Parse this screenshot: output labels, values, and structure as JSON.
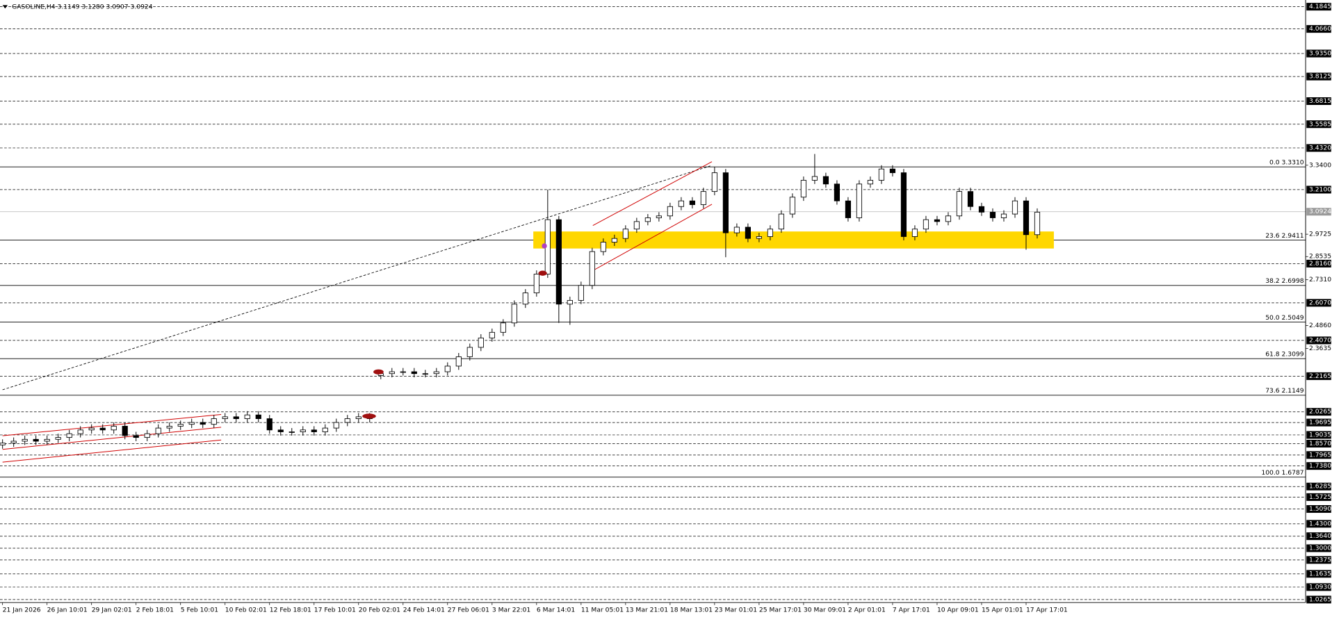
{
  "chart_data": {
    "type": "candlestick",
    "title": "GASOLINE,H4  3.1149 3.1280 3.0907 3.0924",
    "categories": [
      "21 Jan 2026",
      null,
      null,
      null,
      "26 Jan 10:01",
      null,
      null,
      null,
      "29 Jan 02:01",
      null,
      null,
      null,
      "2 Feb 18:01",
      null,
      null,
      null,
      "5 Feb 10:01",
      null,
      null,
      null,
      "10 Feb 02:01",
      null,
      null,
      null,
      "12 Feb 18:01",
      null,
      null,
      null,
      "17 Feb 10:01",
      null,
      null,
      null,
      "20 Feb 02:01",
      null,
      null,
      null,
      "24 Feb 14:01",
      null,
      null,
      null,
      "27 Feb 06:01",
      null,
      null,
      null,
      "3 Mar 22:01",
      null,
      null,
      null,
      "6 Mar 14:01",
      null,
      null,
      null,
      "11 Mar 05:01",
      null,
      null,
      null,
      "13 Mar 21:01",
      null,
      null,
      null,
      "18 Mar 13:01",
      null,
      null,
      null,
      "23 Mar 01:01",
      null,
      null,
      null,
      "25 Mar 17:01",
      null,
      null,
      null,
      "30 Mar 09:01",
      null,
      null,
      null,
      "2 Apr 01:01",
      null,
      null,
      null,
      "7 Apr 17:01",
      null,
      null,
      null,
      "10 Apr 09:01",
      null,
      null,
      null,
      "15 Apr 01:01",
      null,
      null,
      null,
      "17 Apr 17:01",
      null
    ],
    "open": [
      1.85,
      1.86,
      1.87,
      1.88,
      1.87,
      1.88,
      1.89,
      1.91,
      1.93,
      1.94,
      1.93,
      1.95,
      1.9,
      1.89,
      1.91,
      1.94,
      1.95,
      1.96,
      1.97,
      1.96,
      1.99,
      2.0,
      1.99,
      2.01,
      1.99,
      1.93,
      1.92,
      1.92,
      1.93,
      1.92,
      1.94,
      1.97,
      1.99,
      2.0,
      2.22,
      2.23,
      2.24,
      2.24,
      2.23,
      2.23,
      2.24,
      2.27,
      2.32,
      2.37,
      2.42,
      2.45,
      2.5,
      2.6,
      2.66,
      2.76,
      3.05,
      2.6,
      2.62,
      2.7,
      2.88,
      2.93,
      2.95,
      3.0,
      3.04,
      3.06,
      3.07,
      3.12,
      3.15,
      3.13,
      3.2,
      3.3,
      2.98,
      3.01,
      2.95,
      2.96,
      3.0,
      3.08,
      3.17,
      3.26,
      3.28,
      3.24,
      3.15,
      3.06,
      3.24,
      3.26,
      3.32,
      3.3,
      2.96,
      3.0,
      3.05,
      3.04,
      3.07,
      3.2,
      3.12,
      3.09,
      3.06,
      3.08,
      3.15,
      2.97
    ],
    "high": [
      1.88,
      1.89,
      1.9,
      1.9,
      1.9,
      1.91,
      1.93,
      1.95,
      1.96,
      1.96,
      1.97,
      1.97,
      1.92,
      1.93,
      1.96,
      1.97,
      1.98,
      1.99,
      1.99,
      2.01,
      2.02,
      2.02,
      2.03,
      2.03,
      2.01,
      1.95,
      1.94,
      1.95,
      1.95,
      1.96,
      1.99,
      2.01,
      2.02,
      2.02,
      2.25,
      2.26,
      2.26,
      2.26,
      2.25,
      2.26,
      2.29,
      2.34,
      2.39,
      2.44,
      2.47,
      2.52,
      2.62,
      2.68,
      2.78,
      3.21,
      3.07,
      2.64,
      2.72,
      2.9,
      2.95,
      2.97,
      3.02,
      3.06,
      3.08,
      3.09,
      3.14,
      3.17,
      3.17,
      3.22,
      3.33,
      3.32,
      3.03,
      3.03,
      2.98,
      3.02,
      3.1,
      3.19,
      3.28,
      3.4,
      3.3,
      3.26,
      3.17,
      3.26,
      3.28,
      3.34,
      3.34,
      3.32,
      3.02,
      3.07,
      3.07,
      3.09,
      3.22,
      3.22,
      3.14,
      3.11,
      3.1,
      3.17,
      3.17,
      3.11
    ],
    "low": [
      1.83,
      1.84,
      1.85,
      1.85,
      1.85,
      1.86,
      1.87,
      1.89,
      1.91,
      1.91,
      1.91,
      1.88,
      1.87,
      1.87,
      1.89,
      1.92,
      1.93,
      1.94,
      1.94,
      1.94,
      1.97,
      1.97,
      1.97,
      1.97,
      1.91,
      1.9,
      1.9,
      1.9,
      1.9,
      1.9,
      1.92,
      1.95,
      1.97,
      1.97,
      2.2,
      2.21,
      2.22,
      2.21,
      2.21,
      2.21,
      2.22,
      2.25,
      2.3,
      2.35,
      2.4,
      2.43,
      2.48,
      2.58,
      2.64,
      2.74,
      2.5,
      2.49,
      2.6,
      2.68,
      2.86,
      2.91,
      2.93,
      2.98,
      3.02,
      3.04,
      3.05,
      3.1,
      3.11,
      3.11,
      3.18,
      2.85,
      2.96,
      2.93,
      2.93,
      2.94,
      2.98,
      3.06,
      3.15,
      3.24,
      3.22,
      3.13,
      3.04,
      3.04,
      3.22,
      3.24,
      3.28,
      2.94,
      2.94,
      2.98,
      3.02,
      3.02,
      3.05,
      3.1,
      3.07,
      3.04,
      3.04,
      3.06,
      2.89,
      2.95
    ],
    "close": [
      1.86,
      1.87,
      1.88,
      1.87,
      1.88,
      1.89,
      1.91,
      1.93,
      1.94,
      1.93,
      1.95,
      1.9,
      1.89,
      1.91,
      1.94,
      1.95,
      1.96,
      1.97,
      1.96,
      1.99,
      2.0,
      1.99,
      2.01,
      1.99,
      1.93,
      1.92,
      1.92,
      1.93,
      1.92,
      1.94,
      1.97,
      1.99,
      2.0,
      1.99,
      2.23,
      2.24,
      2.24,
      2.23,
      2.23,
      2.24,
      2.27,
      2.32,
      2.37,
      2.42,
      2.45,
      2.5,
      2.6,
      2.66,
      2.76,
      3.05,
      2.6,
      2.62,
      2.7,
      2.88,
      2.93,
      2.95,
      3.0,
      3.04,
      3.06,
      3.07,
      3.12,
      3.15,
      3.13,
      3.2,
      3.3,
      2.98,
      3.01,
      2.95,
      2.96,
      3.0,
      3.08,
      3.17,
      3.26,
      3.28,
      3.24,
      3.15,
      3.06,
      3.24,
      3.26,
      3.32,
      3.3,
      2.96,
      3.0,
      3.05,
      3.04,
      3.07,
      3.2,
      3.12,
      3.09,
      3.06,
      3.08,
      3.15,
      2.97,
      3.09
    ],
    "ylim": [
      1.0107,
      4.2201
    ],
    "yticks": [
      {
        "value": 3.34,
        "label": "3.3400"
      },
      {
        "value": 2.9725,
        "label": "2.9725"
      },
      {
        "value": 2.8535,
        "label": "2.8535"
      },
      {
        "value": 2.731,
        "label": "2.7310"
      },
      {
        "value": 2.486,
        "label": "2.4860"
      },
      {
        "value": 2.3635,
        "label": "2.3635"
      }
    ],
    "levels": [
      4.1845,
      {
        "value": 4.066,
        "label": "4.0660"
      },
      {
        "value": 3.935,
        "label": "3.9350"
      },
      3.8125,
      3.6815,
      3.5585,
      {
        "value": 3.432,
        "label": "3.4320"
      },
      {
        "value": 3.21,
        "label": "3.2100"
      },
      {
        "value": 2.816,
        "label": "2.8160"
      },
      {
        "value": 2.607,
        "label": "2.6070"
      },
      {
        "value": 2.407,
        "label": "2.4070"
      },
      2.2165,
      2.0265,
      1.9695,
      1.9035,
      {
        "value": 1.857,
        "label": "1.8570"
      },
      1.7965,
      {
        "value": 1.738,
        "label": "1.7380"
      },
      1.6285,
      1.5725,
      {
        "value": 1.509,
        "label": "1.5090"
      },
      {
        "value": 1.43,
        "label": "1.4300"
      },
      {
        "value": 1.364,
        "label": "1.3640"
      },
      {
        "value": 1.3,
        "label": "1.3000"
      },
      1.2375,
      1.1635,
      {
        "value": 1.093,
        "label": "1.0930"
      },
      1.0265
    ],
    "current_price": 3.0924,
    "fib_levels": [
      {
        "value": 3.331,
        "label": "0.0 3.3310"
      },
      {
        "value": 2.9411,
        "label": "23.6 2.9411"
      },
      {
        "value": 2.6998,
        "label": "38.2 2.6998"
      },
      {
        "value": 2.5049,
        "label": "50.0 2.5049"
      },
      {
        "value": 2.3099,
        "label": "61.8 2.3099"
      },
      {
        "value": 2.1149,
        "label": "73.6 2.1149"
      },
      {
        "value": 1.6787,
        "label": "100.0 1.6787"
      }
    ],
    "colors": {
      "bull": "#ffffff",
      "bear": "#000000"
    }
  }
}
